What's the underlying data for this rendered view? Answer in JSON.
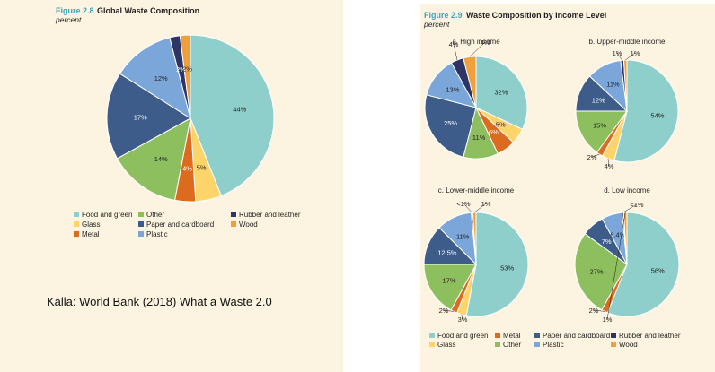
{
  "colors": {
    "food_and_green": "#8fcfcb",
    "glass": "#fdd46a",
    "metal": "#dd6b1f",
    "other": "#8dbf5e",
    "paper_and_cardboard": "#3d5c8a",
    "plastic": "#7ba6d9",
    "rubber_and_leather": "#2e3566",
    "wood": "#f0a03a",
    "panel_background": "#fcf4e0",
    "figure_number": "#3aa6b9"
  },
  "figure_2_8": {
    "number": "Figure 2.8",
    "title": "Global Waste Composition",
    "subtitle": "percent",
    "legend": [
      {
        "key": "food_and_green",
        "label": "Food and green"
      },
      {
        "key": "other",
        "label": "Other"
      },
      {
        "key": "rubber_and_leather",
        "label": "Rubber and leather"
      },
      {
        "key": "glass",
        "label": "Glass"
      },
      {
        "key": "paper_and_cardboard",
        "label": "Paper and cardboard"
      },
      {
        "key": "wood",
        "label": "Wood"
      },
      {
        "key": "metal",
        "label": "Metal"
      },
      {
        "key": "plastic",
        "label": "Plastic"
      }
    ]
  },
  "figure_2_9": {
    "number": "Figure 2.9",
    "title": "Waste Composition by Income Level",
    "subtitle": "percent",
    "legend": [
      {
        "key": "food_and_green",
        "label": "Food and green"
      },
      {
        "key": "metal",
        "label": "Metal"
      },
      {
        "key": "paper_and_cardboard",
        "label": "Paper and cardboard"
      },
      {
        "key": "rubber_and_leather",
        "label": "Rubber and leather"
      },
      {
        "key": "glass",
        "label": "Glass"
      },
      {
        "key": "other",
        "label": "Other"
      },
      {
        "key": "plastic",
        "label": "Plastic"
      },
      {
        "key": "wood",
        "label": "Wood"
      }
    ]
  },
  "source": "Källa: World Bank (2018) What a Waste 2.0",
  "chart_data": [
    {
      "type": "pie",
      "title": "Global Waste Composition",
      "categories": [
        "Food and green",
        "Glass",
        "Metal",
        "Other",
        "Paper and cardboard",
        "Plastic",
        "Rubber and leather",
        "Wood"
      ],
      "values": [
        44,
        5,
        4,
        14,
        17,
        12,
        2,
        2
      ],
      "labels": [
        "44%",
        "5%",
        "4%",
        "14%",
        "17%",
        "12%",
        "2%",
        "2%"
      ],
      "keys": [
        "food_and_green",
        "glass",
        "metal",
        "other",
        "paper_and_cardboard",
        "plastic",
        "rubber_and_leather",
        "wood"
      ]
    },
    {
      "type": "pie",
      "title": "a. High income",
      "categories": [
        "Food and green",
        "Glass",
        "Metal",
        "Other",
        "Paper and cardboard",
        "Plastic",
        "Rubber and leather",
        "Wood"
      ],
      "values": [
        32,
        5,
        6,
        11,
        25,
        13,
        4,
        4
      ],
      "labels": [
        "32%",
        "5%",
        "6%",
        "11%",
        "25%",
        "13%",
        "4%",
        "4%"
      ],
      "keys": [
        "food_and_green",
        "glass",
        "metal",
        "other",
        "paper_and_cardboard",
        "plastic",
        "rubber_and_leather",
        "wood"
      ]
    },
    {
      "type": "pie",
      "title": "b. Upper-middle income",
      "categories": [
        "Food and green",
        "Glass",
        "Metal",
        "Other",
        "Paper and cardboard",
        "Plastic",
        "Rubber and leather",
        "Wood"
      ],
      "values": [
        54,
        4,
        2,
        15,
        12,
        11,
        1,
        1
      ],
      "labels": [
        "54%",
        "4%",
        "2%",
        "15%",
        "12%",
        "11%",
        "1%",
        "1%"
      ],
      "keys": [
        "food_and_green",
        "glass",
        "metal",
        "other",
        "paper_and_cardboard",
        "plastic",
        "rubber_and_leather",
        "wood"
      ]
    },
    {
      "type": "pie",
      "title": "c. Lower-middle income",
      "categories": [
        "Food and green",
        "Glass",
        "Metal",
        "Other",
        "Paper and cardboard",
        "Plastic",
        "Rubber and leather",
        "Wood"
      ],
      "values": [
        53,
        3,
        2,
        17,
        12.5,
        11,
        0.5,
        1
      ],
      "labels": [
        "53%",
        "3%",
        "2%",
        "17%",
        "12.5%",
        "11%",
        "<1%",
        "1%"
      ],
      "keys": [
        "food_and_green",
        "glass",
        "metal",
        "other",
        "paper_and_cardboard",
        "plastic",
        "rubber_and_leather",
        "wood"
      ]
    },
    {
      "type": "pie",
      "title": "d. Low income",
      "categories": [
        "Food and green",
        "Metal",
        "Other",
        "Paper and cardboard",
        "Plastic",
        "Rubber and leather",
        "Wood"
      ],
      "values": [
        56,
        2,
        27,
        7,
        6.4,
        0.5,
        1
      ],
      "labels": [
        "56%",
        "2%",
        "27%",
        "7%",
        "6.4%",
        "<1%",
        "1%"
      ],
      "keys": [
        "food_and_green",
        "metal",
        "other",
        "paper_and_cardboard",
        "plastic",
        "rubber_and_leather",
        "wood"
      ]
    }
  ]
}
